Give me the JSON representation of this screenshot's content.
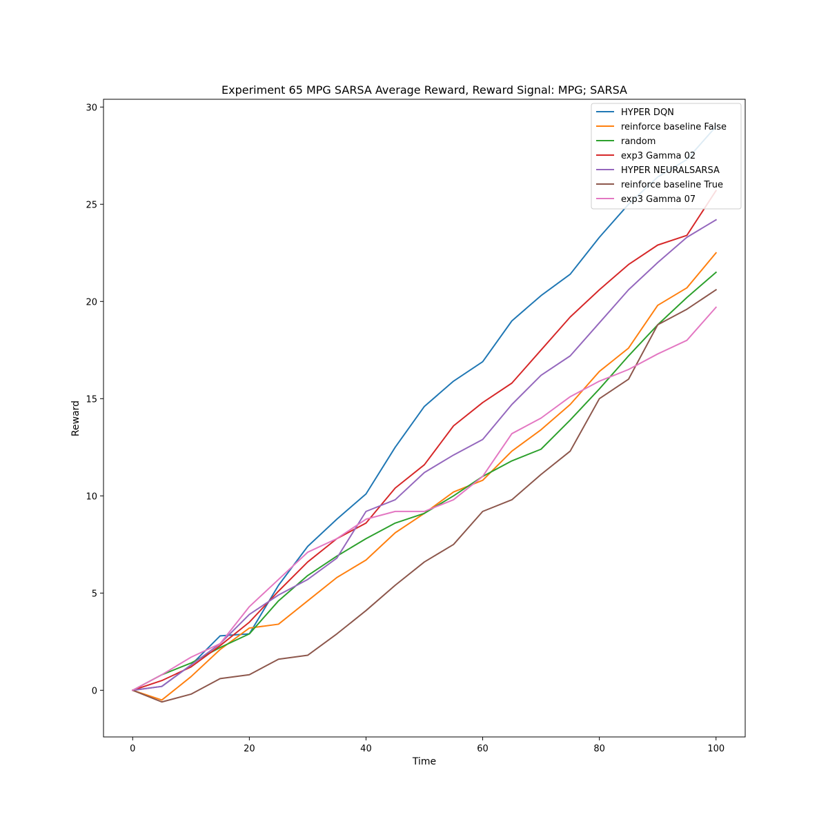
{
  "chart_data": {
    "type": "line",
    "title": "Experiment 65 MPG SARSA Average Reward,  Reward Signal: MPG; SARSA",
    "xlabel": "Time",
    "ylabel": "Reward",
    "xlim": [
      -5,
      105
    ],
    "ylim": [
      -2.4,
      30.4
    ],
    "xticks": [
      0,
      20,
      40,
      60,
      80,
      100
    ],
    "yticks": [
      0,
      5,
      10,
      15,
      20,
      25,
      30
    ],
    "xtick_labels": [
      "0",
      "20",
      "40",
      "60",
      "80",
      "100"
    ],
    "ytick_labels": [
      "0",
      "5",
      "10",
      "15",
      "20",
      "25",
      "30"
    ],
    "grid": false,
    "legend_position": "top-right",
    "x": [
      0,
      5,
      10,
      15,
      20,
      25,
      30,
      35,
      40,
      45,
      50,
      55,
      60,
      65,
      70,
      75,
      80,
      85,
      90,
      95,
      100
    ],
    "series": [
      {
        "name": "HYPER DQN",
        "color": "#1f77b4",
        "values": [
          0,
          0.2,
          1.3,
          2.8,
          2.9,
          5.4,
          7.4,
          8.8,
          10.1,
          12.5,
          14.6,
          15.9,
          16.9,
          19.0,
          20.3,
          21.4,
          23.3,
          25.0,
          26.4,
          27.3,
          29.0
        ]
      },
      {
        "name": "reinforce baseline False",
        "color": "#ff7f0e",
        "values": [
          0,
          -0.5,
          0.7,
          2.1,
          3.2,
          3.4,
          4.6,
          5.8,
          6.7,
          8.1,
          9.1,
          10.2,
          10.8,
          12.3,
          13.4,
          14.7,
          16.4,
          17.6,
          19.8,
          20.7,
          22.5
        ]
      },
      {
        "name": "random",
        "color": "#2ca02c",
        "values": [
          0,
          0.8,
          1.4,
          2.2,
          2.9,
          4.6,
          5.9,
          6.9,
          7.8,
          8.6,
          9.1,
          10.0,
          11.0,
          11.8,
          12.4,
          13.9,
          15.5,
          17.2,
          18.8,
          20.2,
          21.5
        ]
      },
      {
        "name": "exp3 Gamma 02",
        "color": "#d62728",
        "values": [
          0,
          0.5,
          1.2,
          2.3,
          3.5,
          5.1,
          6.6,
          7.8,
          8.6,
          10.4,
          11.6,
          13.6,
          14.8,
          15.8,
          17.5,
          19.2,
          20.6,
          21.9,
          22.9,
          23.4,
          25.7
        ]
      },
      {
        "name": "HYPER NEURALSARSA",
        "color": "#9467bd",
        "values": [
          0,
          0.2,
          1.3,
          2.4,
          3.9,
          4.9,
          5.7,
          6.8,
          9.2,
          9.8,
          11.2,
          12.1,
          12.9,
          14.7,
          16.2,
          17.2,
          18.9,
          20.6,
          22.0,
          23.3,
          24.2
        ]
      },
      {
        "name": "reinforce baseline True",
        "color": "#8c564b",
        "values": [
          0,
          -0.6,
          -0.2,
          0.6,
          0.8,
          1.6,
          1.8,
          2.9,
          4.1,
          5.4,
          6.6,
          7.5,
          9.2,
          9.8,
          11.1,
          12.3,
          15.0,
          16.0,
          18.8,
          19.6,
          20.6
        ]
      },
      {
        "name": "exp3 Gamma 07",
        "color": "#e377c2",
        "values": [
          0,
          0.8,
          1.7,
          2.4,
          4.3,
          5.7,
          7.1,
          7.8,
          8.8,
          9.2,
          9.2,
          9.8,
          11.0,
          13.2,
          14.0,
          15.1,
          15.9,
          16.5,
          17.3,
          18.0,
          19.7
        ]
      }
    ]
  }
}
